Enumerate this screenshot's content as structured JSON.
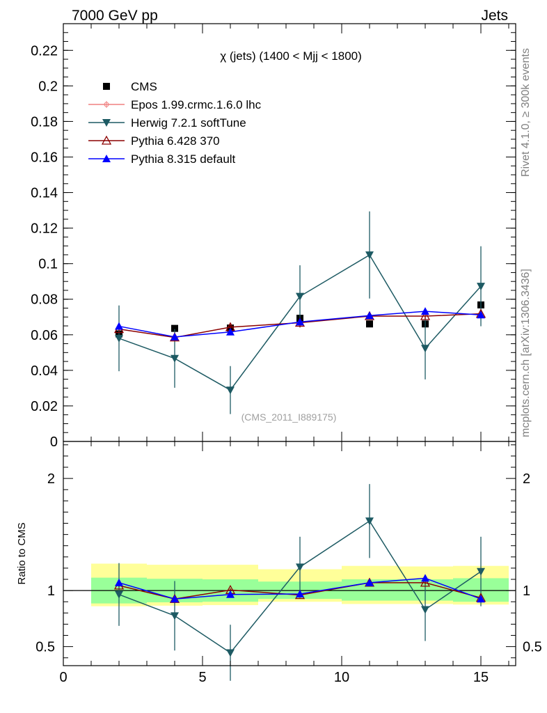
{
  "header": {
    "left": "7000 GeV pp",
    "right": "Jets"
  },
  "side_text": {
    "rivet": "Rivet 4.1.0, ≥ 300k events",
    "mcplots": "mcplots.cern.ch [arXiv:1306.3436]"
  },
  "plot_title": "χ (jets) (1400 < Mjj < 1800)",
  "watermark": "(CMS_2011_I889175)",
  "colors": {
    "cms": "#000000",
    "epos": "#f08080",
    "herwig": "#1d5a63",
    "pythia6": "#8b0000",
    "pythia8": "#0000ff",
    "band_inner": "#99ff99",
    "band_outer": "#ffff99"
  },
  "chart_data": [
    {
      "type": "line",
      "name": "main",
      "title": "χ (jets) (1400 < Mjj < 1800)",
      "xlabel": "",
      "ylabel": "",
      "xlim": [
        0,
        16.25
      ],
      "ylim": [
        0,
        0.235
      ],
      "y_ticks": [
        0,
        0.02,
        0.04,
        0.06,
        0.08,
        0.1,
        0.12,
        0.14,
        0.16,
        0.18,
        0.2,
        0.22
      ],
      "y_tick_labels": [
        "0",
        "0.02",
        "0.04",
        "0.06",
        "0.08",
        "0.1",
        "0.12",
        "0.14",
        "0.16",
        "0.18",
        "0.2",
        "0.22"
      ],
      "legend": [
        "CMS",
        "Epos 1.99.crmc.1.6.0 lhc",
        "Herwig 7.2.1 softTune",
        "Pythia 6.428 370",
        "Pythia 8.315 default"
      ],
      "legend_position": "top-left",
      "series": [
        {
          "name": "CMS",
          "marker": "square",
          "x": [
            2,
            4,
            6,
            8.5,
            11,
            13,
            15
          ],
          "y": [
            0.0605,
            0.0636,
            0.0638,
            0.0693,
            0.0661,
            0.0661,
            0.0768
          ],
          "err": [
            0,
            0,
            0,
            0,
            0,
            0,
            0
          ],
          "line": false
        },
        {
          "name": "Epos 1.99.crmc.1.6.0 lhc",
          "marker": "cross",
          "x": [],
          "y": [],
          "err": [],
          "line": true
        },
        {
          "name": "Herwig 7.2.1 softTune",
          "marker": "triangle-down",
          "x": [
            2,
            4,
            6,
            8.5,
            11,
            13,
            15
          ],
          "y": [
            0.058,
            0.0467,
            0.0289,
            0.0816,
            0.1049,
            0.0524,
            0.0873
          ],
          "err": [
            0.0185,
            0.0165,
            0.0135,
            0.0175,
            0.0245,
            0.0175,
            0.0225
          ],
          "line": true
        },
        {
          "name": "Pythia 6.428 370",
          "marker": "triangle-up-open",
          "x": [
            2,
            4,
            6,
            8.5,
            11,
            13,
            15
          ],
          "y": [
            0.0632,
            0.0585,
            0.0643,
            0.0668,
            0.0705,
            0.0705,
            0.0718
          ],
          "err": [
            0.0015,
            0.0015,
            0.0015,
            0.0025,
            0.0015,
            0.0015,
            0.0015
          ],
          "line": true
        },
        {
          "name": "Pythia 8.315 default",
          "marker": "triangle-up",
          "x": [
            2,
            4,
            6,
            8.5,
            11,
            13,
            15
          ],
          "y": [
            0.0648,
            0.0588,
            0.0616,
            0.0672,
            0.0708,
            0.0732,
            0.0712
          ],
          "err": [
            0.001,
            0.001,
            0.001,
            0.001,
            0.001,
            0.001,
            0.001
          ],
          "line": true
        }
      ]
    },
    {
      "type": "line",
      "name": "ratio",
      "title": "",
      "xlabel": "",
      "ylabel": "Ratio to CMS",
      "xlim": [
        0,
        16.25
      ],
      "ylim": [
        0.33,
        2.33
      ],
      "x_ticks": [
        0,
        5,
        10,
        15
      ],
      "x_tick_labels": [
        "0",
        "5",
        "10",
        "15"
      ],
      "y_ticks": [
        0.5,
        1,
        2
      ],
      "y_tick_labels": [
        "0.5",
        "1",
        "2"
      ],
      "bands": [
        {
          "x0": 1,
          "x1": 3,
          "inner": [
            0.885,
            1.115
          ],
          "outer": [
            0.86,
            1.24
          ]
        },
        {
          "x0": 3,
          "x1": 5,
          "inner": [
            0.895,
            1.105
          ],
          "outer": [
            0.865,
            1.23
          ]
        },
        {
          "x0": 5,
          "x1": 7,
          "inner": [
            0.9,
            1.1
          ],
          "outer": [
            0.87,
            1.23
          ]
        },
        {
          "x0": 7,
          "x1": 10,
          "inner": [
            0.925,
            1.08
          ],
          "outer": [
            0.9,
            1.19
          ]
        },
        {
          "x0": 10,
          "x1": 12,
          "inner": [
            0.91,
            1.1
          ],
          "outer": [
            0.88,
            1.22
          ]
        },
        {
          "x0": 12,
          "x1": 14,
          "inner": [
            0.91,
            1.1
          ],
          "outer": [
            0.88,
            1.215
          ]
        },
        {
          "x0": 14,
          "x1": 16,
          "inner": [
            0.9,
            1.11
          ],
          "outer": [
            0.875,
            1.22
          ]
        }
      ],
      "series": [
        {
          "name": "Herwig 7.2.1 softTune",
          "marker": "triangle-down",
          "x": [
            2,
            4,
            6,
            8.5,
            11,
            13,
            15
          ],
          "y": [
            0.965,
            0.775,
            0.445,
            1.21,
            1.62,
            0.83,
            1.17
          ],
          "err": [
            0.28,
            0.31,
            0.25,
            0.27,
            0.33,
            0.28,
            0.31
          ],
          "line": true
        },
        {
          "name": "Pythia 6.428 370",
          "marker": "triangle-up-open",
          "x": [
            2,
            4,
            6,
            8.5,
            11,
            13,
            15
          ],
          "y": [
            1.045,
            0.925,
            1.005,
            0.96,
            1.07,
            1.07,
            0.935
          ],
          "err": [
            0.015,
            0.015,
            0.015,
            0.025,
            0.015,
            0.015,
            0.015
          ],
          "line": true
        },
        {
          "name": "Pythia 8.315 default",
          "marker": "triangle-up",
          "x": [
            2,
            4,
            6,
            8.5,
            11,
            13,
            15
          ],
          "y": [
            1.07,
            0.925,
            0.965,
            0.97,
            1.07,
            1.11,
            0.925
          ],
          "err": [
            0.01,
            0.01,
            0.01,
            0.01,
            0.01,
            0.01,
            0.01
          ],
          "line": true
        }
      ]
    }
  ]
}
